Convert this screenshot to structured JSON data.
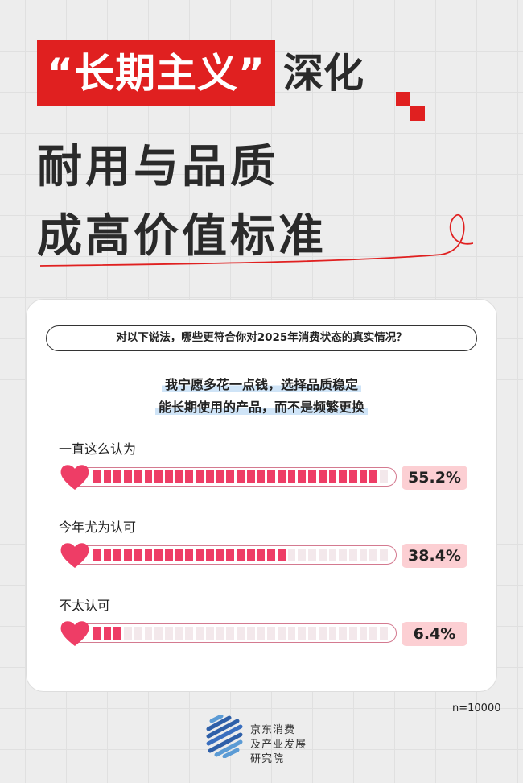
{
  "header": {
    "title_highlight": "“长期主义”",
    "title_rest": "深化",
    "line2": "耐用与品质",
    "line3": "成高价值标准",
    "accent": "#e02020"
  },
  "survey": {
    "question": "对以下说法，哪些更符合你对2025年消费状态的真实情况？",
    "statement_line1": "我宁愿多花一点钱，选择品质稳定",
    "statement_line2": "能长期使用的产品，而不是频繁更换"
  },
  "chart_data": {
    "type": "bar",
    "categories": [
      "一直这么认为",
      "今年尤为认可",
      "不太认可"
    ],
    "values": [
      55.2,
      38.4,
      6.4
    ],
    "labels": [
      "55.2%",
      "38.4%",
      "6.4%"
    ],
    "unit": "%",
    "bar_color": "#ee3d66"
  },
  "footer": {
    "sample": "n=10000",
    "org_line1": "京东消费",
    "org_line2": "及产业发展",
    "org_line3": "研究院"
  }
}
